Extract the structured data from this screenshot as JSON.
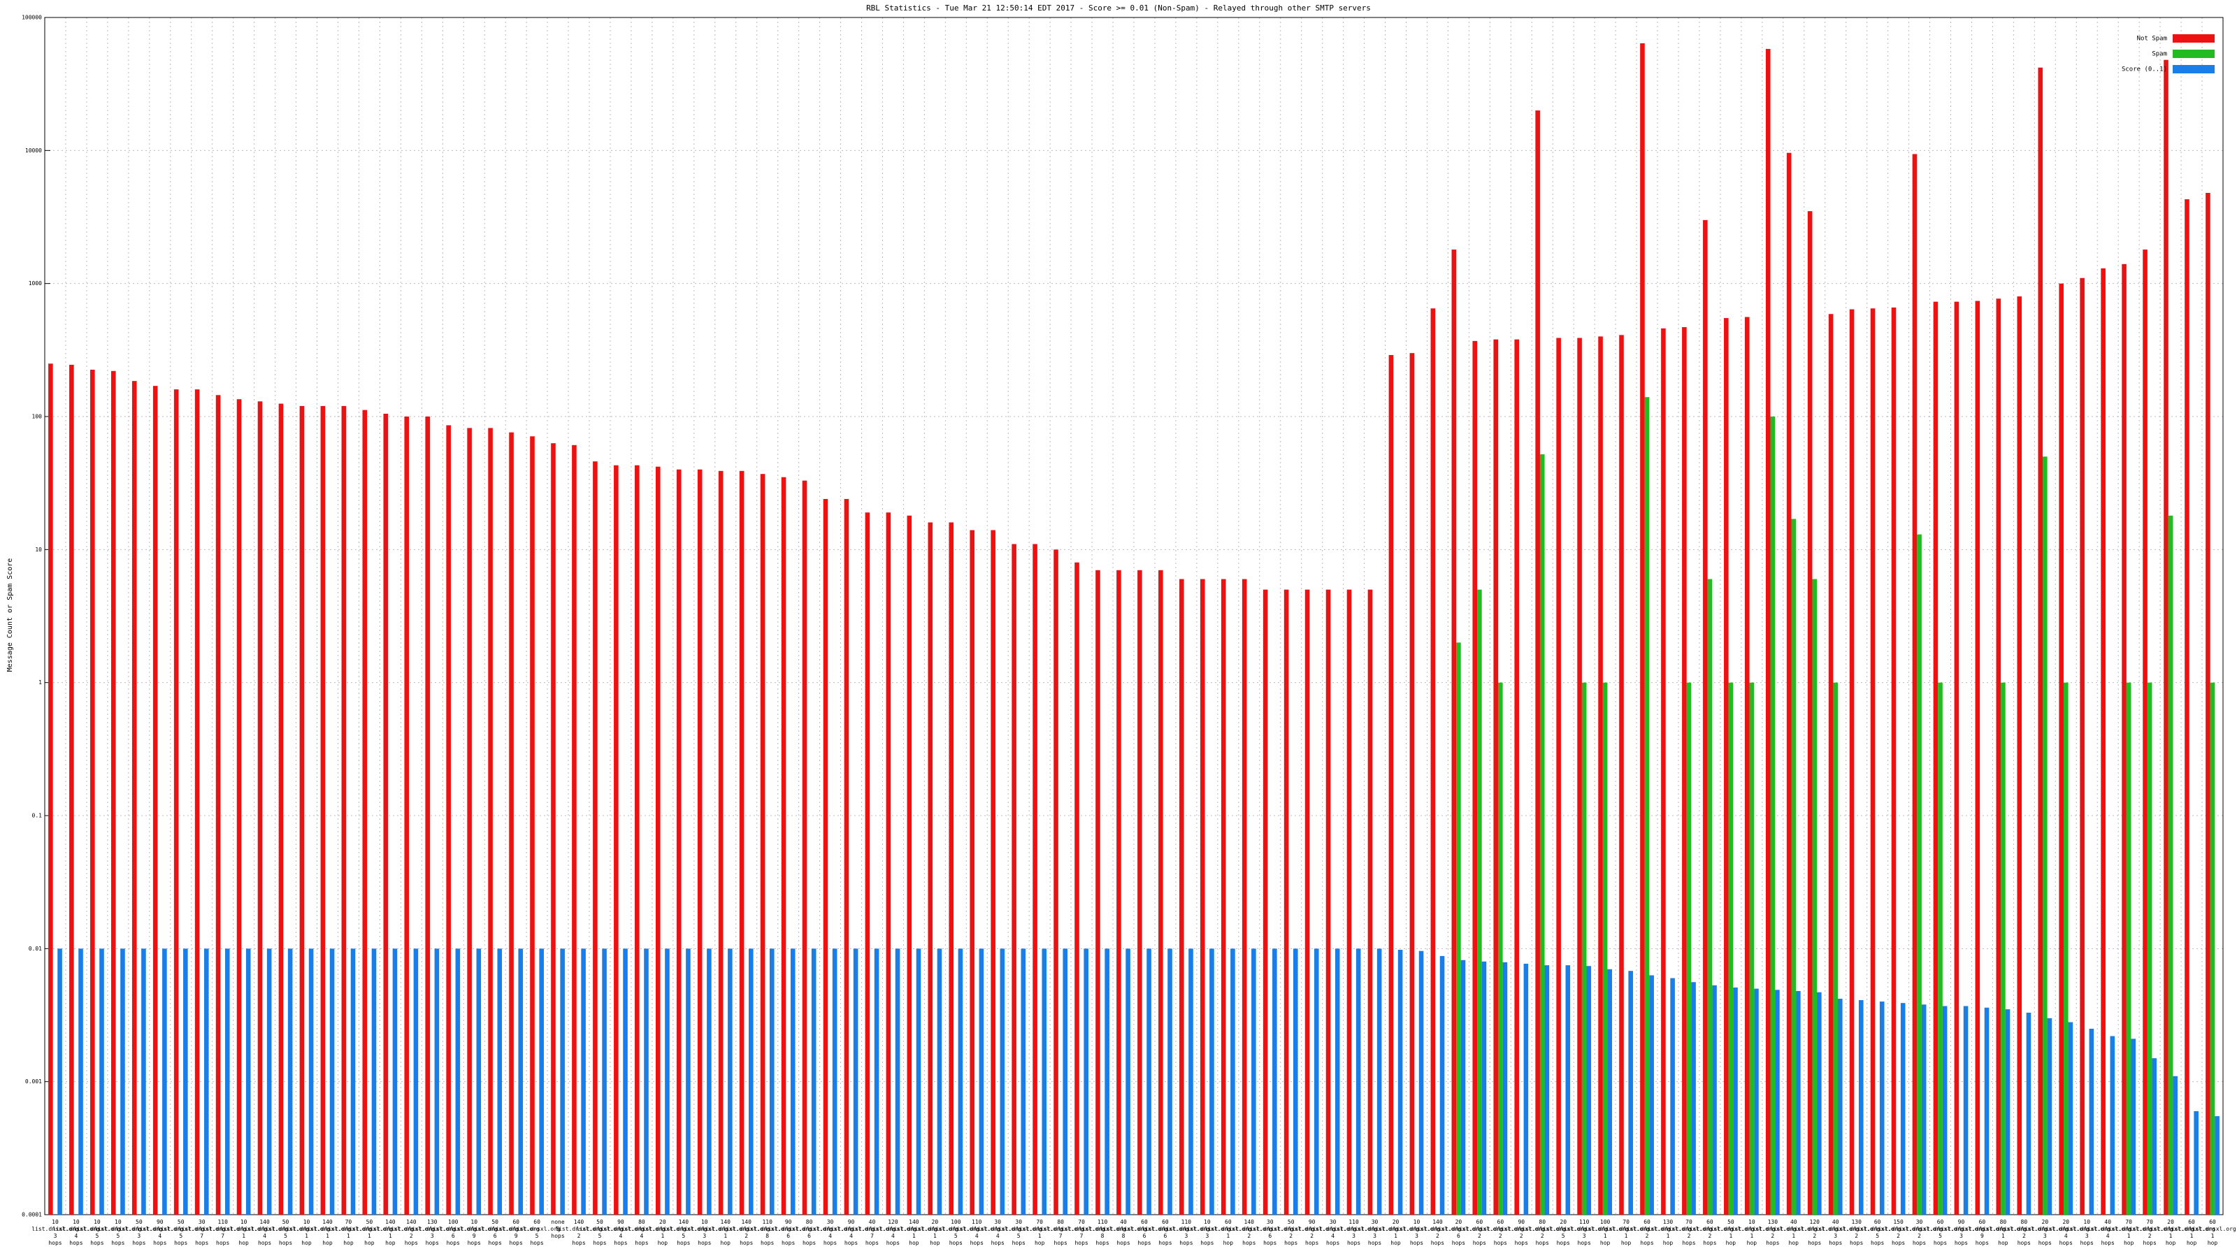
{
  "chart_data": {
    "type": "bar",
    "title": "RBL Statistics - Tue Mar 21 12:50:14 EDT 2017 - Score >= 0.01 (Non-Spam) - Relayed through other SMTP servers",
    "y_label": "Message Count or Spam Score",
    "log_scale": true,
    "grid": true,
    "legend": "top-right",
    "ylim": [
      0.0001,
      100000
    ],
    "yticks": [
      0.0001,
      0.001,
      0.01,
      0.1,
      1,
      10,
      100,
      1000,
      10000,
      100000
    ],
    "categories": [
      "10 list.dnsxl.org 3 hops",
      "10 list.dnsxl.org 4 hops",
      "10 list.dnsxl.org 5 hops",
      "10 list.dnsxl.org 5 hops",
      "50 list.dnsxl.org 3 hops",
      "90 list.dnsxl.org 4 hops",
      "50 list.dnsxl.org 5 hops",
      "30 list.dnsxl.org 7 hops",
      "110 list.dnsxl.org 7 hops",
      "10 list.dnsxl.org 1 hop",
      "140 list.dnsxl.org 4 hops",
      "50 list.dnsxl.org 5 hops",
      "10 list.dnsxl.org 1 hop",
      "140 list.dnsxl.org 1 hop",
      "70 list.dnsxl.org 1 hop",
      "50 list.dnsxl.org 1 hop",
      "140 list.dnsxl.org 1 hop",
      "140 list.dnsxl.org 2 hops",
      "130 list.dnsxl.org 3 hops",
      "100 list.dnsxl.org 6 hops",
      "10 list.dnsxl.org 9 hops",
      "50 list.dnsxl.org 6 hops",
      "60 list.dnsxl.org 9 hops",
      "60 list.dnsxl.org 5 hops",
      "none 5 hops",
      "140 list.dnsxl.org 2 hops",
      "50 list.dnsxl.org 5 hops",
      "90 list.dnsxl.org 4 hops",
      "80 list.dnsxl.org 4 hops",
      "20 list.dnsxl.org 1 hop",
      "140 list.dnsxl.org 5 hops",
      "10 list.dnsxl.org 3 hops",
      "140 list.dnsxl.org 1 hop",
      "140 list.dnsxl.org 2 hops",
      "110 list.dnsxl.org 8 hops",
      "90 list.dnsxl.org 6 hops",
      "80 list.dnsxl.org 6 hops",
      "30 list.dnsxl.org 4 hops",
      "90 list.dnsxl.org 4 hops",
      "40 list.dnsxl.org 7 hops",
      "120 list.dnsxl.org 4 hops",
      "140 list.dnsxl.org 1 hop",
      "20 list.dnsxl.org 1 hop",
      "100 list.dnsxl.org 5 hops",
      "110 list.dnsxl.org 4 hops",
      "30 list.dnsxl.org 4 hops",
      "30 list.dnsxl.org 5 hops",
      "70 list.dnsxl.org 1 hop",
      "80 list.dnsxl.org 7 hops",
      "70 list.dnsxl.org 7 hops",
      "110 list.dnsxl.org 8 hops",
      "40 list.dnsxl.org 8 hops",
      "60 list.dnsxl.org 6 hops",
      "60 list.dnsxl.org 6 hops",
      "110 list.dnsxl.org 3 hops",
      "10 list.dnsxl.org 3 hops",
      "60 list.dnsxl.org 1 hop",
      "140 list.dnsxl.org 2 hops",
      "30 list.dnsxl.org 6 hops",
      "50 list.dnsxl.org 2 hops",
      "90 list.dnsxl.org 2 hops",
      "30 list.dnsxl.org 4 hops",
      "110 list.dnsxl.org 3 hops",
      "30 list.dnsxl.org 3 hops",
      "20 list.dnsxl.org 1 hop",
      "10 list.dnsxl.org 3 hops",
      "140 list.dnsxl.org 2 hops",
      "20 list.dnsxl.org 6 hops",
      "60 list.dnsxl.org 2 hops",
      "60 list.dnsxl.org 2 hops",
      "90 list.dnsxl.org 2 hops",
      "80 list.dnsxl.org 2 hops",
      "20 list.dnsxl.org 5 hops",
      "110 list.dnsxl.org 3 hops",
      "100 list.dnsxl.org 1 hop",
      "70 list.dnsxl.org 1 hop",
      "60 list.dnsxl.org 2 hops",
      "130 list.dnsxl.org 1 hop",
      "70 list.dnsxl.org 2 hops",
      "60 list.dnsxl.org 2 hops",
      "50 list.dnsxl.org 1 hop",
      "10 list.dnsxl.org 1 hop",
      "130 list.dnsxl.org 2 hops",
      "40 list.dnsxl.org 1 hop",
      "120 list.dnsxl.org 2 hops",
      "40 list.dnsxl.org 3 hops",
      "130 list.dnsxl.org 2 hops",
      "60 list.dnsxl.org 5 hops",
      "150 list.dnsxl.org 2 hops",
      "30 list.dnsxl.org 2 hops",
      "60 list.dnsxl.org 5 hops",
      "90 list.dnsxl.org 3 hops",
      "60 list.dnsxl.org 9 hops",
      "80 list.dnsxl.org 1 hop",
      "80 list.dnsxl.org 2 hops",
      "20 list.dnsxl.org 3 hops",
      "20 list.dnsxl.org 4 hops",
      "10 list.dnsxl.org 3 hops",
      "40 list.dnsxl.org 4 hops",
      "70 list.dnsxl.org 1 hop",
      "70 list.dnsxl.org 2 hops",
      "20 list.dnsxl.org 1 hop",
      "60 list.dnsxl.org 1 hop",
      "60 list.dnsxl.org 1 hop"
    ],
    "series": [
      {
        "name": "Not Spam",
        "color": "#ee1111",
        "values": [
          250,
          245,
          225,
          220,
          185,
          170,
          160,
          160,
          145,
          135,
          130,
          125,
          120,
          120,
          120,
          112,
          105,
          100,
          100,
          86,
          82,
          82,
          76,
          71,
          63,
          61,
          46,
          43,
          43,
          42,
          40,
          40,
          39,
          39,
          37,
          35,
          33,
          24,
          24,
          19,
          19,
          18,
          16,
          16,
          14,
          14,
          11,
          11,
          10,
          8,
          7,
          7,
          7,
          7,
          6,
          6,
          6,
          6,
          5,
          5,
          5,
          5,
          5,
          5,
          290,
          300,
          650,
          1800,
          370,
          380,
          380,
          20000,
          390,
          390,
          400,
          410,
          64000,
          460,
          470,
          3000,
          550,
          560,
          58000,
          9600,
          3500,
          590,
          640,
          650,
          660,
          9400,
          730,
          730,
          740,
          770,
          800,
          42000,
          1000,
          1100,
          1300,
          1400,
          1800,
          48000,
          4300,
          4800
        ]
      },
      {
        "name": "Spam",
        "color": "#22bb22",
        "values": [
          null,
          null,
          null,
          null,
          null,
          null,
          null,
          null,
          null,
          null,
          null,
          null,
          null,
          null,
          null,
          null,
          null,
          null,
          null,
          null,
          null,
          null,
          null,
          null,
          null,
          null,
          null,
          null,
          null,
          null,
          null,
          null,
          null,
          null,
          null,
          null,
          null,
          null,
          null,
          null,
          null,
          null,
          null,
          null,
          null,
          null,
          null,
          null,
          null,
          null,
          null,
          null,
          null,
          null,
          null,
          null,
          null,
          null,
          null,
          null,
          null,
          null,
          null,
          null,
          null,
          null,
          null,
          2,
          5,
          1,
          null,
          52,
          null,
          1,
          1,
          null,
          140,
          null,
          1,
          6,
          1,
          1,
          100,
          17,
          6,
          1,
          null,
          null,
          null,
          13,
          1,
          null,
          null,
          1,
          null,
          50,
          1,
          null,
          null,
          1,
          1,
          18,
          null,
          1
        ]
      },
      {
        "name": "Score (0..1)",
        "color": "#1a7ee8",
        "values": [
          0.01,
          0.01,
          0.01,
          0.01,
          0.01,
          0.01,
          0.01,
          0.01,
          0.01,
          0.01,
          0.01,
          0.01,
          0.01,
          0.01,
          0.01,
          0.01,
          0.01,
          0.01,
          0.01,
          0.01,
          0.01,
          0.01,
          0.01,
          0.01,
          0.01,
          0.01,
          0.01,
          0.01,
          0.01,
          0.01,
          0.01,
          0.01,
          0.01,
          0.01,
          0.01,
          0.01,
          0.01,
          0.01,
          0.01,
          0.01,
          0.01,
          0.01,
          0.01,
          0.01,
          0.01,
          0.01,
          0.01,
          0.01,
          0.01,
          0.01,
          0.01,
          0.01,
          0.01,
          0.01,
          0.01,
          0.01,
          0.01,
          0.01,
          0.01,
          0.01,
          0.01,
          0.01,
          0.01,
          0.01,
          0.0098,
          0.0096,
          0.0088,
          0.0082,
          0.008,
          0.0079,
          0.0077,
          0.0075,
          0.0075,
          0.0074,
          0.007,
          0.0068,
          0.0063,
          0.006,
          0.0056,
          0.0053,
          0.0051,
          0.005,
          0.0049,
          0.0048,
          0.0047,
          0.0042,
          0.0041,
          0.004,
          0.0039,
          0.0038,
          0.0037,
          0.0037,
          0.0036,
          0.0035,
          0.0033,
          0.003,
          0.0028,
          0.0025,
          0.0022,
          0.0021,
          0.0015,
          0.0011,
          0.0006,
          0.00055
        ]
      }
    ]
  }
}
